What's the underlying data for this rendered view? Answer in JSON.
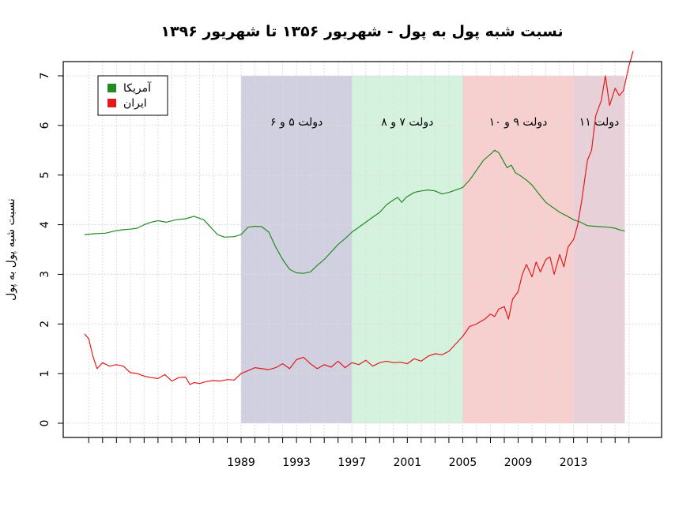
{
  "chart_data": {
    "type": "line",
    "title": "نسبت شبه پول به پول - شهریور ۱۳۵۶ تا شهریور ۱۳۹۶",
    "xlabel": "",
    "ylabel": "نسبت شبه پول به پول",
    "xlim": [
      1977.7,
      2017.7
    ],
    "ylim": [
      0,
      7
    ],
    "yticks": [
      0,
      1,
      2,
      3,
      4,
      5,
      6,
      7
    ],
    "xticks": [
      1989,
      1993,
      1997,
      2001,
      2005,
      2009,
      2013
    ],
    "grid": true,
    "legend": {
      "position": "top-left",
      "entries": [
        {
          "label": "آمریکا",
          "color": "#228B22"
        },
        {
          "label": "ایران",
          "color": "#E31A1C"
        }
      ]
    },
    "bands": [
      {
        "label": "دولت ۵ و ۶",
        "start": 1989,
        "end": 1997,
        "color": "#aaaac6"
      },
      {
        "label": "دولت ۷ و ۸",
        "start": 1997,
        "end": 2005,
        "color": "#b2e8c4"
      },
      {
        "label": "دولت ۹ و ۱۰",
        "start": 2005,
        "end": 2013,
        "color": "#f2a7a7"
      },
      {
        "label": "دولت ۱۱",
        "start": 2013,
        "end": 2016.7,
        "color": "#d4aab6"
      }
    ],
    "series": [
      {
        "name": "آمریکا",
        "color": "#228B22",
        "x": [
          1977.7,
          1978.5,
          1979.2,
          1980,
          1980.5,
          1981,
          1981.5,
          1982,
          1982.5,
          1983,
          1983.6,
          1984.3,
          1985,
          1985.6,
          1986.3,
          1986.8,
          1987.3,
          1987.8,
          1988.5,
          1989,
          1989.5,
          1990,
          1990.5,
          1991,
          1991.5,
          1992,
          1992.5,
          1993,
          1993.5,
          1994,
          1994.5,
          1995,
          1995.5,
          1996,
          1996.5,
          1997,
          1997.5,
          1998,
          1998.5,
          1999,
          1999.5,
          2000,
          2000.3,
          2000.6,
          2000.9,
          2001.2,
          2001.5,
          2002,
          2002.5,
          2003,
          2003.5,
          2004,
          2004.5,
          2005,
          2005.5,
          2006,
          2006.5,
          2007,
          2007.3,
          2007.6,
          2007.9,
          2008.2,
          2008.5,
          2008.8,
          2009.2,
          2009.6,
          2010,
          2010.5,
          2011,
          2011.5,
          2012,
          2012.5,
          2013,
          2013.5,
          2014,
          2014.5,
          2015,
          2015.5,
          2016,
          2016.3,
          2016.7
        ],
        "values": [
          3.8,
          3.82,
          3.83,
          3.88,
          3.9,
          3.91,
          3.93,
          4.0,
          4.05,
          4.08,
          4.05,
          4.1,
          4.12,
          4.17,
          4.1,
          3.95,
          3.8,
          3.75,
          3.76,
          3.8,
          3.95,
          3.97,
          3.96,
          3.85,
          3.55,
          3.3,
          3.1,
          3.03,
          3.02,
          3.05,
          3.18,
          3.3,
          3.45,
          3.6,
          3.72,
          3.85,
          3.95,
          4.05,
          4.15,
          4.25,
          4.4,
          4.5,
          4.55,
          4.45,
          4.55,
          4.6,
          4.65,
          4.68,
          4.7,
          4.68,
          4.62,
          4.65,
          4.7,
          4.75,
          4.9,
          5.1,
          5.3,
          5.42,
          5.5,
          5.45,
          5.3,
          5.15,
          5.2,
          5.05,
          4.98,
          4.9,
          4.8,
          4.62,
          4.45,
          4.35,
          4.25,
          4.18,
          4.1,
          4.05,
          3.98,
          3.97,
          3.96,
          3.95,
          3.93,
          3.9,
          3.87
        ]
      },
      {
        "name": "ایران",
        "color": "#E31A1C",
        "x": [
          1977.7,
          1978,
          1978.3,
          1978.6,
          1979,
          1979.5,
          1980,
          1980.5,
          1981,
          1981.5,
          1982,
          1982.5,
          1983,
          1983.5,
          1984,
          1984.5,
          1985,
          1985.3,
          1985.6,
          1986,
          1986.5,
          1987,
          1987.5,
          1988,
          1988.5,
          1989,
          1989.5,
          1990,
          1990.5,
          1991,
          1991.5,
          1992,
          1992.5,
          1993,
          1993.5,
          1994,
          1994.5,
          1995,
          1995.5,
          1996,
          1996.5,
          1997,
          1997.5,
          1998,
          1998.5,
          1999,
          1999.5,
          2000,
          2000.5,
          2001,
          2001.5,
          2002,
          2002.5,
          2003,
          2003.5,
          2004,
          2004.5,
          2005,
          2005.5,
          2006,
          2006.3,
          2006.6,
          2007,
          2007.3,
          2007.6,
          2008,
          2008.3,
          2008.6,
          2009,
          2009.3,
          2009.6,
          2010,
          2010.3,
          2010.6,
          2011,
          2011.3,
          2011.6,
          2012,
          2012.3,
          2012.6,
          2013,
          2013.3,
          2013.6,
          2014,
          2014.3,
          2014.6,
          2015,
          2015.3,
          2015.6,
          2016,
          2016.3,
          2016.6,
          2017,
          2017.3
        ],
        "values": [
          1.8,
          1.7,
          1.35,
          1.1,
          1.22,
          1.15,
          1.18,
          1.15,
          1.02,
          1.0,
          0.95,
          0.92,
          0.9,
          0.98,
          0.85,
          0.92,
          0.93,
          0.78,
          0.82,
          0.8,
          0.84,
          0.86,
          0.85,
          0.88,
          0.87,
          1.0,
          1.06,
          1.12,
          1.1,
          1.08,
          1.12,
          1.2,
          1.1,
          1.28,
          1.33,
          1.2,
          1.1,
          1.18,
          1.13,
          1.25,
          1.12,
          1.22,
          1.18,
          1.27,
          1.15,
          1.22,
          1.25,
          1.22,
          1.23,
          1.2,
          1.3,
          1.25,
          1.35,
          1.4,
          1.38,
          1.45,
          1.6,
          1.75,
          1.95,
          2.0,
          2.05,
          2.1,
          2.2,
          2.15,
          2.3,
          2.35,
          2.1,
          2.5,
          2.65,
          3.0,
          3.2,
          2.95,
          3.25,
          3.05,
          3.3,
          3.35,
          3.0,
          3.4,
          3.15,
          3.55,
          3.7,
          4.0,
          4.5,
          5.3,
          5.5,
          6.2,
          6.5,
          7.0,
          6.4,
          6.75,
          6.6,
          6.7,
          7.2,
          7.5
        ]
      }
    ]
  }
}
